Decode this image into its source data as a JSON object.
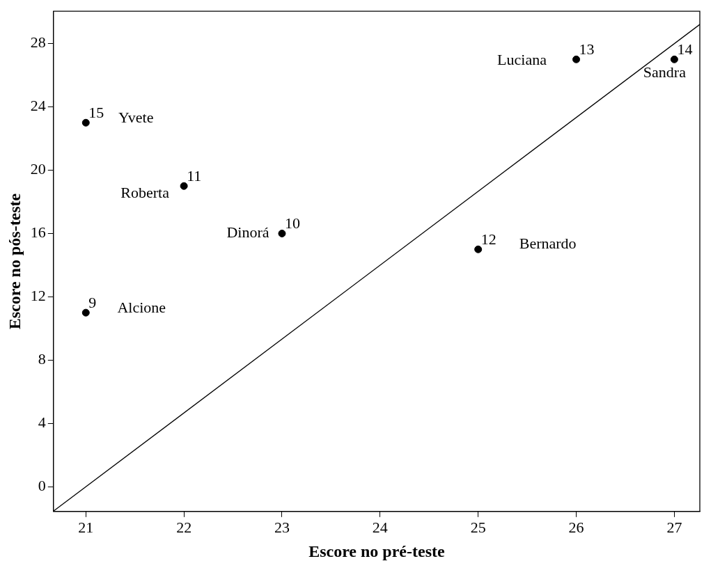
{
  "chart_data": {
    "type": "scatter",
    "xlabel": "Escore no pré-teste",
    "ylabel": "Escore no pós-teste",
    "xlim": [
      20.67,
      27.26
    ],
    "xticks": [
      21,
      22,
      23,
      24,
      25,
      26,
      27
    ],
    "ylim": [
      -1.56,
      30.04
    ],
    "yticks": [
      0,
      4,
      8,
      12,
      16,
      20,
      24,
      28
    ],
    "grid": false,
    "legend": false,
    "series": [
      {
        "color": "#000000",
        "marker": "circle",
        "x": [
          21,
          21,
          22,
          23,
          25,
          26,
          27
        ],
        "values": [
          11,
          23,
          19,
          16,
          15,
          27,
          27
        ]
      },
      {
        "type": "line",
        "color": "#000000",
        "x": [
          20.67,
          27.26
        ],
        "values": [
          -1.54,
          29.21
        ]
      }
    ],
    "annotations": [
      {
        "text": "9",
        "x": 21,
        "y": 11
      },
      {
        "text": "Alcione",
        "x": 21,
        "y": 11
      },
      {
        "text": "15",
        "x": 21,
        "y": 23
      },
      {
        "text": "Yvete",
        "x": 21,
        "y": 23
      },
      {
        "text": "11",
        "x": 22,
        "y": 19
      },
      {
        "text": "Roberta",
        "x": 22,
        "y": 19
      },
      {
        "text": "10",
        "x": 23,
        "y": 16
      },
      {
        "text": "Dinorá",
        "x": 23,
        "y": 16
      },
      {
        "text": "12",
        "x": 25,
        "y": 15
      },
      {
        "text": "Bernardo",
        "x": 25,
        "y": 15
      },
      {
        "text": "13",
        "x": 26,
        "y": 27
      },
      {
        "text": "Luciana",
        "x": 26,
        "y": 27
      },
      {
        "text": "14",
        "x": 27,
        "y": 27
      },
      {
        "text": "Sandra",
        "x": 27,
        "y": 27
      }
    ]
  }
}
